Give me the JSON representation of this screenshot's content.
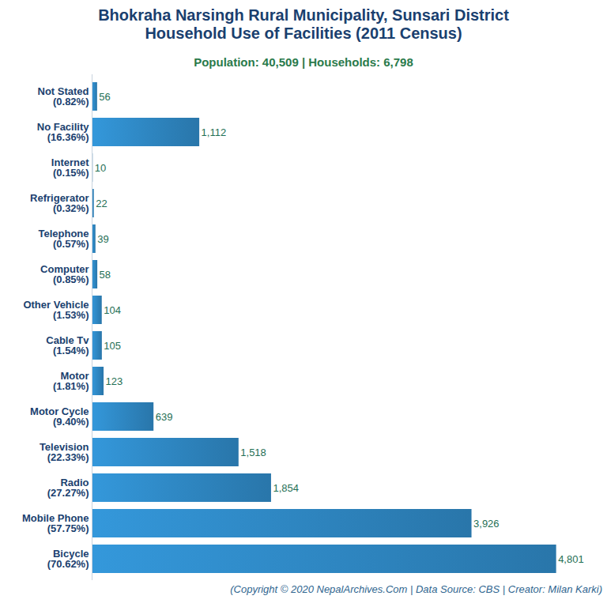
{
  "chart_data": {
    "type": "bar",
    "orientation": "horizontal",
    "title": "Bhokraha Narsingh Rural Municipality, Sunsari District\nHousehold Use of Facilities (2011 Census)",
    "subtitle": "Population: 40,509 | Households: 6,798",
    "caption": "(Copyright © 2020 NepalArchives.Com | Data Source: CBS | Creator: Milan Karki)",
    "categories": [
      "Not Stated\n(0.82%)",
      "No Facility\n(16.36%)",
      "Internet\n(0.15%)",
      "Refrigerator\n(0.32%)",
      "Telephone\n(0.57%)",
      "Computer\n(0.85%)",
      "Other Vehicle\n(1.53%)",
      "Cable Tv\n(1.54%)",
      "Motor\n(1.81%)",
      "Motor Cycle\n(9.40%)",
      "Television\n(22.33%)",
      "Radio\n(27.27%)",
      "Mobile Phone\n(57.75%)",
      "Bicycle\n(70.62%)"
    ],
    "values": [
      56,
      1112,
      10,
      22,
      39,
      58,
      104,
      105,
      123,
      639,
      1518,
      1854,
      3926,
      4801
    ],
    "value_labels": [
      "56",
      "1,112",
      "10",
      "22",
      "39",
      "58",
      "104",
      "105",
      "123",
      "639",
      "1,518",
      "1,854",
      "3,926",
      "4,801"
    ],
    "data_labels": true,
    "color": "#2e86c1",
    "xlim": [
      0,
      5000
    ],
    "tick_labels": "y",
    "grid": false
  }
}
